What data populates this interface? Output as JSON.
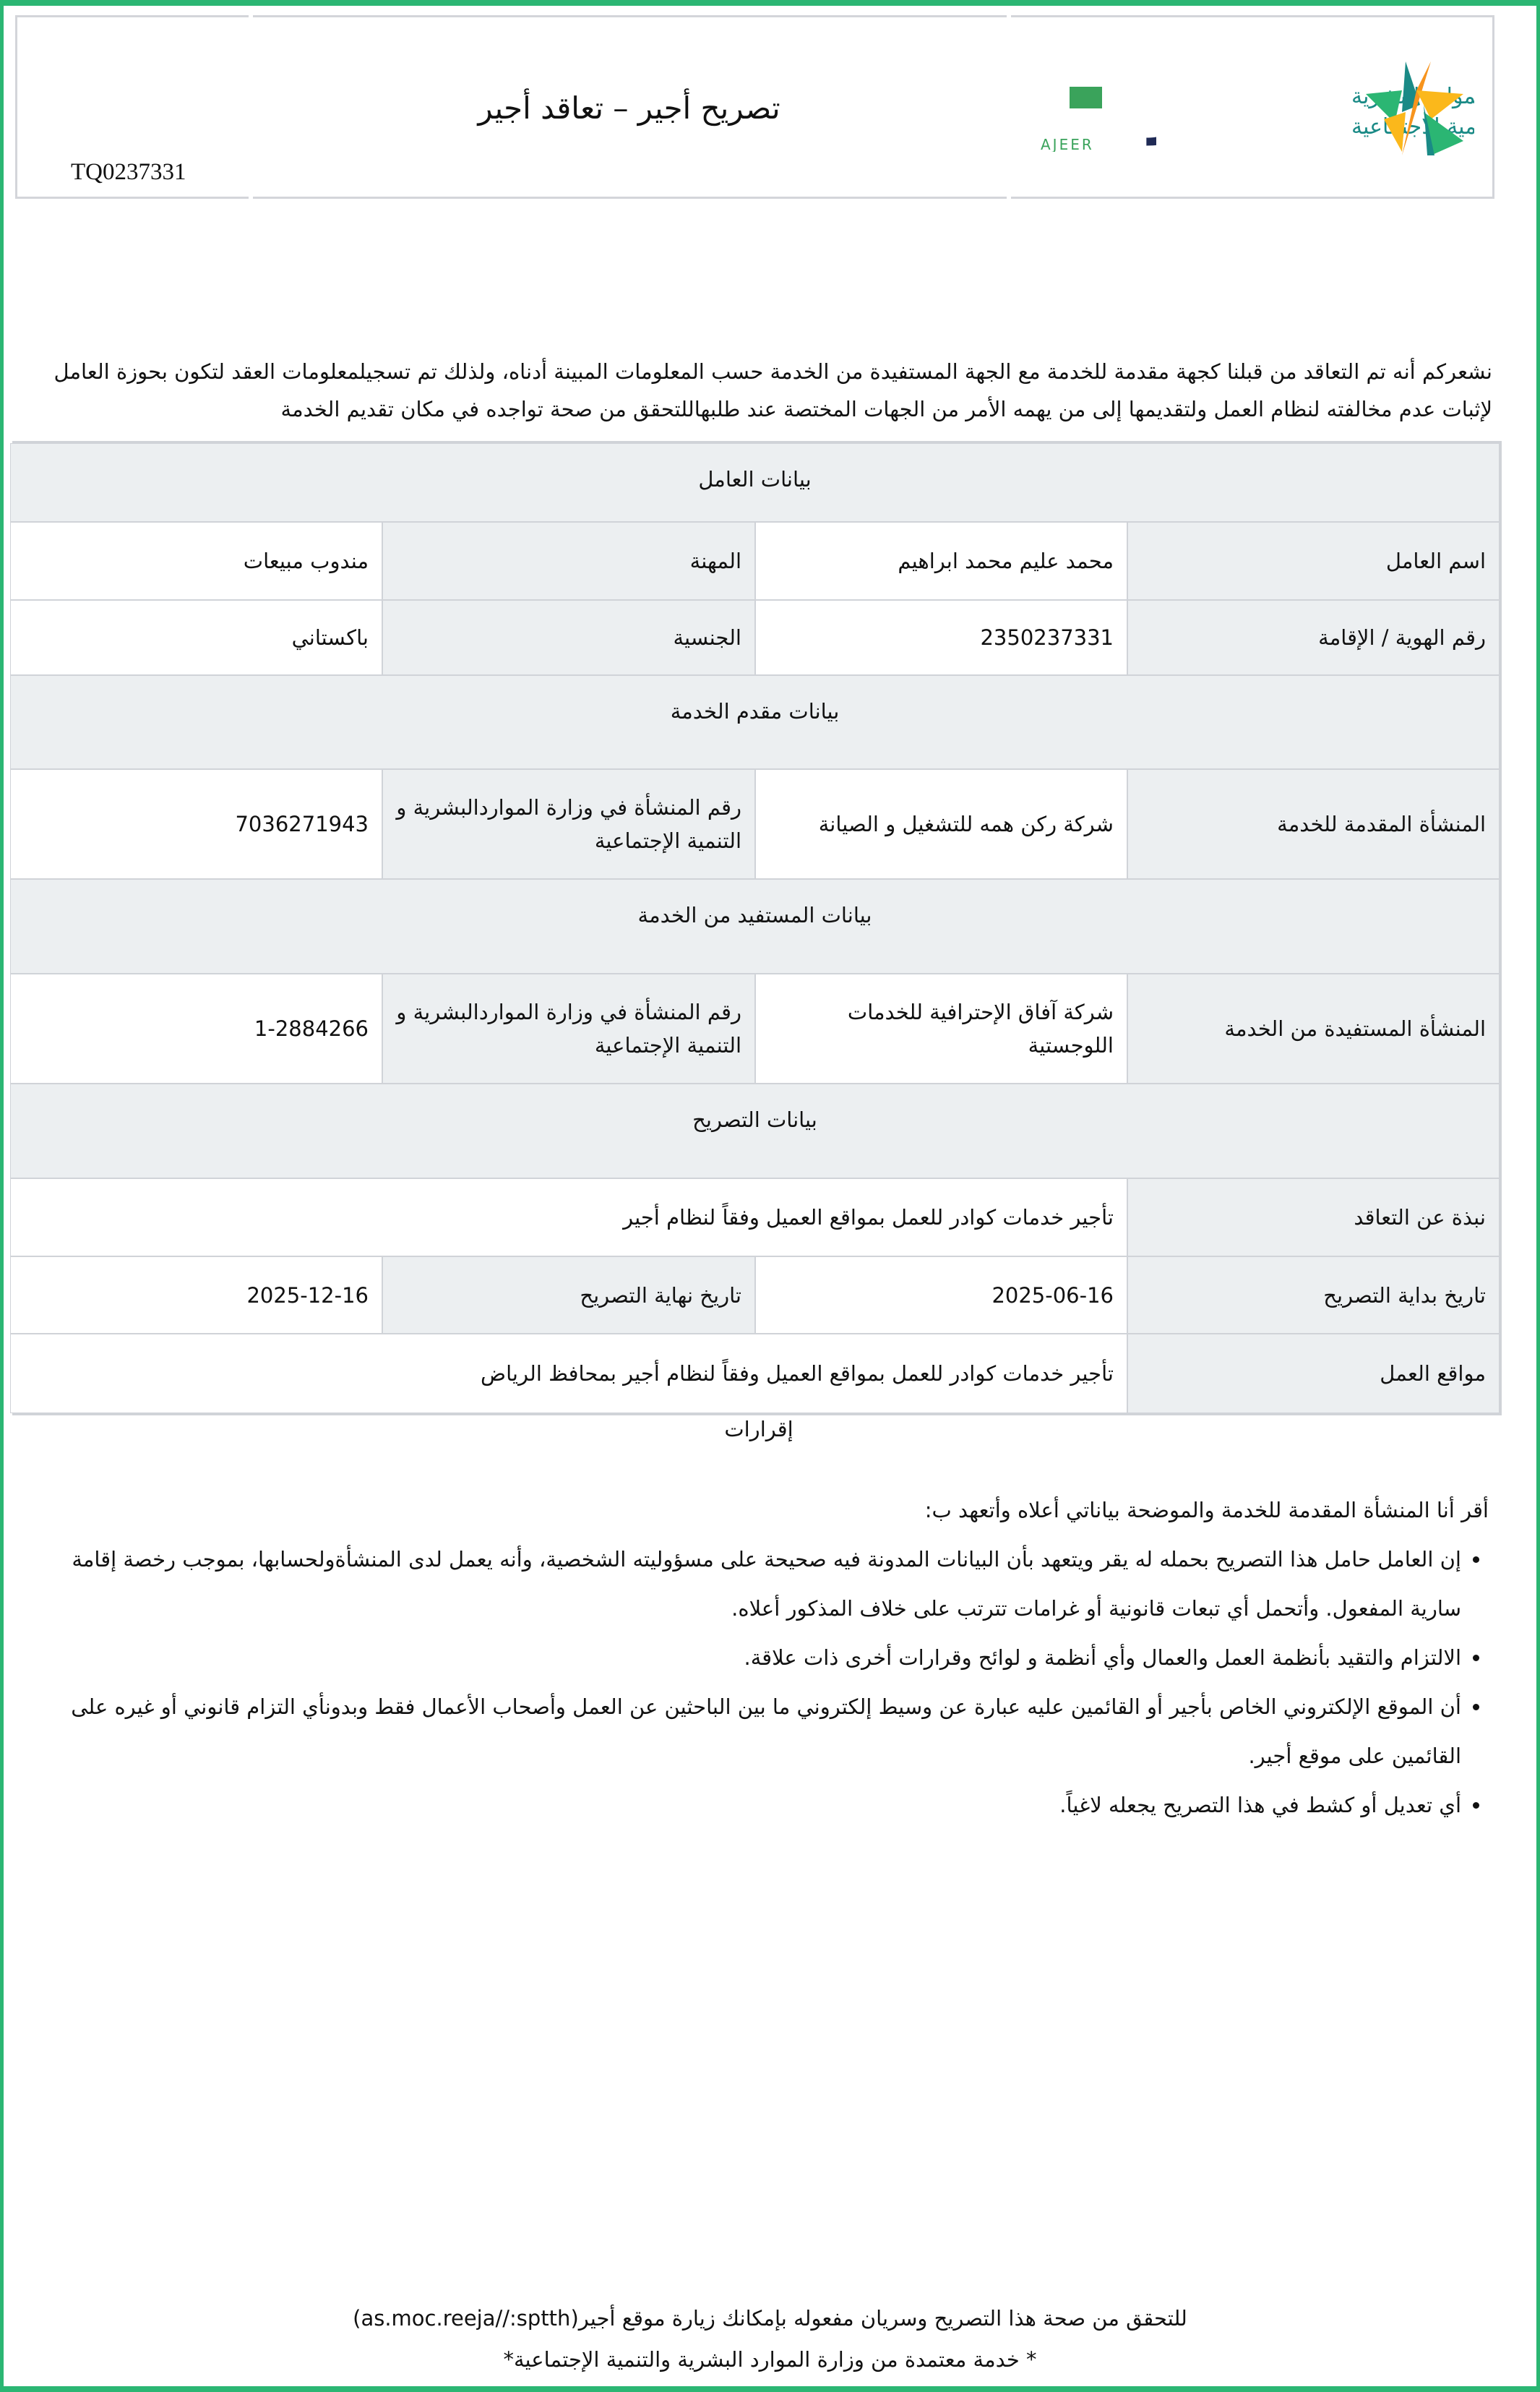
{
  "header": {
    "title": "تصريح أجير –  تعاقد أجير",
    "permit_code": "TQ0237331",
    "ministry_logo_text": [
      "الموارد البشرية",
      "والتنمية الاجتماعية"
    ],
    "ajeer_logo_text": "أجير",
    "ajeer_logo_latin": "AJEER",
    "colors": {
      "green": "#2bb673",
      "teal": "#1a8a86",
      "orange": "#f7941d",
      "yellow": "#fbb81b",
      "navy": "#1f2a55"
    }
  },
  "intro": "نشعركم أنه تم التعاقد من قبلنا كجهة مقدمة للخدمة مع الجهة المستفيدة من الخدمة حسب المعلومات المبينة أدناه، ولذلك تم تسجيلمعلومات العقد لتكون بحوزة العامل لإثبات عدم مخالفته لنظام العمل ولتقديمها إلى من يهمه الأمر من الجهات المختصة عند طلبهاللتحقق من صحة تواجده في مكان تقديم الخدمة",
  "worker": {
    "section": "بيانات العامل",
    "name_label": "اسم العامل",
    "name": "محمد عليم محمد ابراهيم",
    "job_label": "المهنة",
    "job": "مندوب مبيعات",
    "id_label": "رقم الهوية / الإقامة",
    "id": "2350237331",
    "nationality_label": "الجنسية",
    "nationality": "باكستاني"
  },
  "provider": {
    "section": "بيانات مقدم الخدمة",
    "org_label": "المنشأة المقدمة للخدمة",
    "org": "شركة ركن همه للتشغيل و الصيانة",
    "reg_label": "رقم المنشأة في وزارة المواردالبشرية و التنمية الإجتماعية",
    "reg": "7036271943"
  },
  "beneficiary": {
    "section": "بيانات المستفيد من الخدمة",
    "org_label": "المنشأة المستفيدة من الخدمة",
    "org": "شركة آفاق الإحترافية للخدمات اللوجستية",
    "reg_label": "رقم المنشأة في وزارة المواردالبشرية و التنمية الإجتماعية",
    "reg": "1-2884266"
  },
  "permit": {
    "section": "بيانات التصريح",
    "summary_label": "نبذة عن التعاقد",
    "summary": "تأجير خدمات كوادر للعمل بمواقع العميل وفقاً لنظام أجير",
    "start_label": "تاريخ بداية التصريح",
    "start": "2025-06-16",
    "end_label": "تاريخ نهاية التصريح",
    "end": "2025-12-16",
    "sites_label": "مواقع العمل",
    "sites": "تأجير خدمات كوادر للعمل بمواقع العميل وفقاً لنظام أجير بمحافظ الرياض"
  },
  "acknowledgements": {
    "title": "إقرارات",
    "intro": "أقر أنا المنشأة المقدمة للخدمة والموضحة بياناتي أعلاه وأتعهد ب:",
    "items": [
      "إن العامل حامل هذا التصريح بحمله له يقر ويتعهد بأن البيانات المدونة فيه صحيحة على مسؤوليته الشخصية، وأنه يعمل لدى المنشأةولحسابها، بموجب رخصة إقامة سارية المفعول. وأتحمل أي تبعات قانونية أو غرامات تترتب على خلاف المذكور أعلاه.",
      "الالتزام والتقيد بأنظمة العمل والعمال وأي أنظمة و لوائح وقرارات أخرى ذات علاقة.",
      "أن الموقع الإلكتروني الخاص بأجير أو القائمين عليه عبارة عن وسيط إلكتروني ما بين الباحثين عن العمل وأصحاب الأعمال فقط وبدونأي التزام قانوني أو غيره على القائمين على موقع أجير.",
      "أي تعديل أو كشط في هذا التصريح يجعله لاغياً."
    ]
  },
  "footer": {
    "verify": "للتحقق من صحة هذا التصريح وسريان مفعوله بإمكانك زيارة موقع أجير(as.moc.reeja//:sptth)",
    "approved": "* خدمة معتمدة من وزارة الموارد البشرية والتنمية الإجتماعية*"
  }
}
